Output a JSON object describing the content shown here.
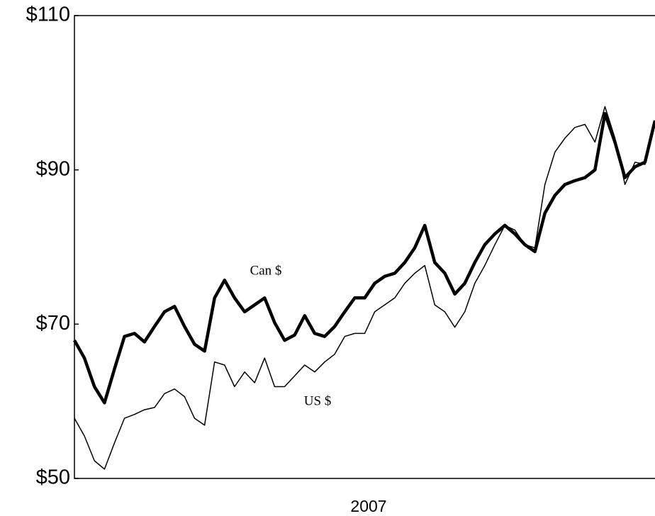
{
  "chart_data": {
    "type": "line",
    "x_label": "2007",
    "ylim": [
      50,
      110
    ],
    "yticks": [
      {
        "value": 50,
        "label": "$50"
      },
      {
        "value": 70,
        "label": "$70"
      },
      {
        "value": 90,
        "label": "$90"
      },
      {
        "value": 110,
        "label": "$110"
      }
    ],
    "grid": false,
    "series": [
      {
        "name": "Can $",
        "color": "#000000",
        "width": 4.5,
        "values": [
          67.9,
          65.6,
          61.9,
          59.8,
          64.2,
          68.4,
          68.8,
          67.7,
          69.7,
          71.6,
          72.3,
          69.7,
          67.4,
          66.5,
          73.4,
          75.7,
          73.4,
          71.6,
          72.5,
          73.4,
          70.2,
          67.9,
          68.6,
          71.1,
          68.8,
          68.4,
          69.7,
          71.6,
          73.4,
          73.4,
          75.3,
          76.2,
          76.6,
          78.0,
          79.9,
          82.8,
          78.0,
          76.6,
          73.9,
          75.3,
          78.0,
          80.3,
          81.7,
          82.8,
          81.7,
          80.3,
          79.4,
          84.4,
          86.7,
          88.1,
          88.6,
          89.0,
          90.0,
          97.3,
          93.6,
          89.0,
          90.4,
          91.0,
          96.4
        ]
      },
      {
        "name": "US $",
        "color": "#000000",
        "width": 1.5,
        "values": [
          57.8,
          55.5,
          52.3,
          51.2,
          54.6,
          57.8,
          58.3,
          58.9,
          59.2,
          61.0,
          61.6,
          60.6,
          57.8,
          56.9,
          65.1,
          64.7,
          61.9,
          63.8,
          62.4,
          65.6,
          61.9,
          61.9,
          63.3,
          64.7,
          63.8,
          65.1,
          66.1,
          68.4,
          68.8,
          68.8,
          71.6,
          72.5,
          73.4,
          75.3,
          76.6,
          77.6,
          72.5,
          71.6,
          69.6,
          71.6,
          75.3,
          77.6,
          80.3,
          82.8,
          82.2,
          80.3,
          79.9,
          88.1,
          92.3,
          94.1,
          95.5,
          95.9,
          93.6,
          98.2,
          94.1,
          88.1,
          91.0,
          90.7,
          96.0
        ]
      }
    ]
  }
}
